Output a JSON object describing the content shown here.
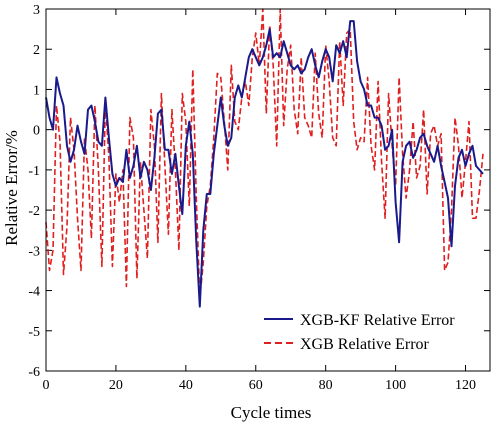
{
  "chart_data": {
    "type": "line",
    "xlabel": "Cycle times",
    "ylabel": "Relative Error/%",
    "xlim": [
      0,
      127
    ],
    "ylim": [
      -6,
      3
    ],
    "xticks": [
      0,
      20,
      40,
      60,
      80,
      100,
      120
    ],
    "yticks": [
      -6,
      -5,
      -4,
      -3,
      -2,
      -1,
      0,
      1,
      2,
      3
    ],
    "grid": false,
    "legend_position": "bottom-right",
    "series": [
      {
        "name": "XGB-KF Relative Error",
        "color": "#1a1a8c",
        "dash": "solid",
        "x": [
          0,
          1,
          2,
          3,
          4,
          5,
          6,
          7,
          8,
          9,
          10,
          11,
          12,
          13,
          14,
          15,
          16,
          17,
          18,
          19,
          20,
          21,
          22,
          23,
          24,
          25,
          26,
          27,
          28,
          29,
          30,
          31,
          32,
          33,
          34,
          35,
          36,
          37,
          38,
          39,
          40,
          41,
          42,
          43,
          44,
          45,
          46,
          47,
          48,
          49,
          50,
          51,
          52,
          53,
          54,
          55,
          56,
          57,
          58,
          59,
          60,
          61,
          62,
          63,
          64,
          65,
          66,
          67,
          68,
          69,
          70,
          71,
          72,
          73,
          74,
          75,
          76,
          77,
          78,
          79,
          80,
          81,
          82,
          83,
          84,
          85,
          86,
          87,
          88,
          89,
          90,
          91,
          92,
          93,
          94,
          95,
          96,
          97,
          98,
          99,
          100,
          101,
          102,
          103,
          104,
          105,
          106,
          107,
          108,
          109,
          110,
          111,
          112,
          113,
          114,
          115,
          116,
          117,
          118,
          119,
          120,
          121,
          122,
          123,
          124,
          125
        ],
        "y": [
          0.8,
          0.3,
          0.0,
          1.3,
          0.9,
          0.6,
          -0.4,
          -0.8,
          -0.5,
          0.1,
          -0.3,
          -0.6,
          0.5,
          0.6,
          0.2,
          -0.3,
          -0.4,
          0.8,
          -0.2,
          -1.1,
          -1.4,
          -1.2,
          -1.3,
          -0.5,
          -1.2,
          -0.9,
          -0.4,
          -1.2,
          -0.8,
          -1.0,
          -1.5,
          -0.7,
          0.4,
          0.5,
          -0.5,
          -0.5,
          -1.1,
          -0.6,
          -1.4,
          -2.1,
          -0.4,
          0.2,
          -0.6,
          -2.8,
          -4.4,
          -2.5,
          -1.6,
          -1.6,
          -0.6,
          0.1,
          0.8,
          0.1,
          -0.4,
          -0.2,
          0.8,
          1.1,
          0.8,
          1.3,
          1.8,
          2.0,
          1.8,
          1.6,
          1.8,
          2.1,
          2.5,
          1.8,
          1.9,
          1.8,
          2.2,
          1.9,
          1.6,
          1.5,
          1.6,
          1.4,
          1.5,
          1.8,
          2.0,
          1.6,
          1.3,
          1.7,
          2.0,
          1.8,
          1.2,
          2.1,
          1.9,
          2.2,
          1.8,
          2.7,
          2.7,
          1.7,
          1.2,
          1.0,
          0.6,
          0.6,
          0.3,
          0.3,
          0.1,
          -0.5,
          -0.4,
          0.0,
          -1.8,
          -2.8,
          -0.8,
          -0.4,
          -0.3,
          -0.7,
          -0.5,
          -0.2,
          -0.1,
          -0.4,
          -0.6,
          -0.8,
          -0.4,
          -0.9,
          -1.3,
          -1.7,
          -2.9,
          -1.4,
          -0.7,
          -0.5,
          -0.9,
          -0.6,
          -0.4,
          -0.9,
          -1.0,
          -1.1
        ]
      },
      {
        "name": "XGB Relative Error",
        "color": "#e02020",
        "dash": "dashed",
        "x": [
          0,
          1,
          2,
          3,
          4,
          5,
          6,
          7,
          8,
          9,
          10,
          11,
          12,
          13,
          14,
          15,
          16,
          17,
          18,
          19,
          20,
          21,
          22,
          23,
          24,
          25,
          26,
          27,
          28,
          29,
          30,
          31,
          32,
          33,
          34,
          35,
          36,
          37,
          38,
          39,
          40,
          41,
          42,
          43,
          44,
          45,
          46,
          47,
          48,
          49,
          50,
          51,
          52,
          53,
          54,
          55,
          56,
          57,
          58,
          59,
          60,
          61,
          62,
          63,
          64,
          65,
          66,
          67,
          68,
          69,
          70,
          71,
          72,
          73,
          74,
          75,
          76,
          77,
          78,
          79,
          80,
          81,
          82,
          83,
          84,
          85,
          86,
          87,
          88,
          89,
          90,
          91,
          92,
          93,
          94,
          95,
          96,
          97,
          98,
          99,
          100,
          101,
          102,
          103,
          104,
          105,
          106,
          107,
          108,
          109,
          110,
          111,
          112,
          113,
          114,
          115,
          116,
          117,
          118,
          119,
          120,
          121,
          122,
          123,
          124,
          125
        ],
        "y": [
          -2.3,
          -3.5,
          -3.0,
          0.6,
          -0.3,
          -3.6,
          -2.4,
          0.3,
          -0.5,
          -2.2,
          -3.5,
          -0.2,
          -1.0,
          -2.7,
          0.6,
          -1.0,
          -3.4,
          0.7,
          -0.7,
          -3.4,
          -1.1,
          -1.8,
          -1.0,
          -3.9,
          0.3,
          -0.2,
          -3.7,
          -0.8,
          -2.0,
          -3.2,
          0.5,
          -0.4,
          -2.8,
          0.9,
          -0.9,
          -2.6,
          0.5,
          -1.0,
          -3.0,
          0.9,
          0.2,
          -1.9,
          1.5,
          -1.7,
          -4.2,
          -3.3,
          -1.9,
          -1.4,
          -0.2,
          1.4,
          1.3,
          0.2,
          -1.0,
          1.6,
          0.2,
          0.0,
          0.8,
          1.2,
          0.6,
          1.8,
          2.4,
          1.6,
          3.0,
          0.4,
          2.6,
          1.6,
          -0.4,
          3.0,
          0.1,
          1.5,
          2.1,
          0.5,
          -0.1,
          1.8,
          0.3,
          0.1,
          -0.2,
          1.9,
          0.4,
          -0.2,
          2.1,
          1.2,
          -0.2,
          -0.4,
          2.2,
          0.6,
          2.4,
          2.5,
          0.2,
          -0.5,
          -0.2,
          -0.3,
          1.3,
          -0.4,
          -1.0,
          1.2,
          -0.8,
          -2.2,
          0.9,
          -0.4,
          -1.4,
          1.3,
          -0.6,
          -1.7,
          -1.0,
          0.2,
          -1.2,
          -0.9,
          0.5,
          -1.6,
          -0.1,
          0.1,
          -0.4,
          -0.1,
          -3.5,
          -3.3,
          -2.0,
          0.3,
          -0.4,
          -1.7,
          -0.8,
          0.2,
          -2.2,
          -2.2,
          -1.5,
          -0.6
        ]
      }
    ]
  }
}
